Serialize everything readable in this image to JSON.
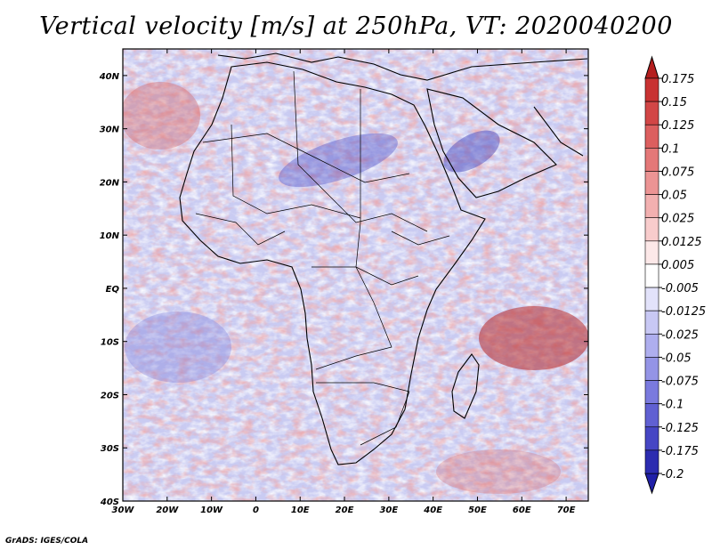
{
  "title": "Vertical velocity [m/s] at 250hPa, VT: 2020040200",
  "credit": "GrADS: IGES/COLA",
  "map": {
    "lon_range": [
      -30,
      75
    ],
    "lat_range": [
      -40,
      45
    ],
    "lon_ticks": [
      {
        "value": -30,
        "label": "30W"
      },
      {
        "value": -20,
        "label": "20W"
      },
      {
        "value": -10,
        "label": "10W"
      },
      {
        "value": 0,
        "label": "0"
      },
      {
        "value": 10,
        "label": "10E"
      },
      {
        "value": 20,
        "label": "20E"
      },
      {
        "value": 30,
        "label": "30E"
      },
      {
        "value": 40,
        "label": "40E"
      },
      {
        "value": 50,
        "label": "50E"
      },
      {
        "value": 60,
        "label": "60E"
      },
      {
        "value": 70,
        "label": "70E"
      }
    ],
    "lat_ticks": [
      {
        "value": 40,
        "label": "40N"
      },
      {
        "value": 30,
        "label": "30N"
      },
      {
        "value": 20,
        "label": "20N"
      },
      {
        "value": 10,
        "label": "10N"
      },
      {
        "value": 0,
        "label": "EQ"
      },
      {
        "value": -10,
        "label": "10S"
      },
      {
        "value": -20,
        "label": "20S"
      },
      {
        "value": -30,
        "label": "30S"
      },
      {
        "value": -40,
        "label": "40S"
      }
    ]
  },
  "colorbar": {
    "levels": [
      {
        "label": "0.175",
        "color": "#b41e1e"
      },
      {
        "label": "0.15",
        "color": "#c83232"
      },
      {
        "label": "0.125",
        "color": "#d24646"
      },
      {
        "label": "0.1",
        "color": "#dc5f5f"
      },
      {
        "label": "0.075",
        "color": "#e47878"
      },
      {
        "label": "0.05",
        "color": "#ec9494"
      },
      {
        "label": "0.025",
        "color": "#f2b0b0"
      },
      {
        "label": "0.0125",
        "color": "#f8cccc"
      },
      {
        "label": "0.005",
        "color": "#fce8e8"
      },
      {
        "label": "-0.005",
        "color": "#ffffff"
      },
      {
        "label": "-0.0125",
        "color": "#e2e2fa"
      },
      {
        "label": "-0.025",
        "color": "#c8c8f4"
      },
      {
        "label": "-0.05",
        "color": "#aeaeee"
      },
      {
        "label": "-0.075",
        "color": "#9494e6"
      },
      {
        "label": "-0.1",
        "color": "#7a7ade"
      },
      {
        "label": "-0.125",
        "color": "#6060d2"
      },
      {
        "label": "-0.175",
        "color": "#4646c4"
      },
      {
        "label": "-0.2",
        "color": "#2c2cb0"
      }
    ],
    "top_color": "#b41e1e",
    "bottom_color": "#2020a8"
  },
  "colors": {
    "positive": "#d23232",
    "negative": "#3c3cc8",
    "coast": "#000000"
  }
}
